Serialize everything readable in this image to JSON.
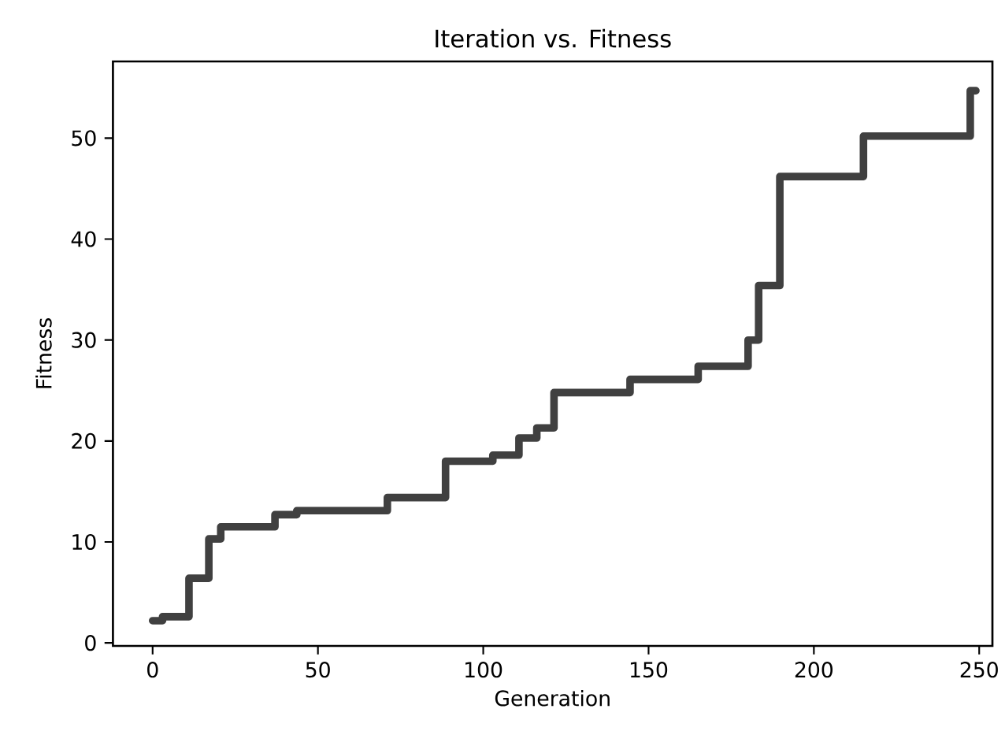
{
  "chart_data": {
    "type": "step",
    "title": "Iteration vs. Fitness",
    "xlabel": "Generation",
    "ylabel": "Fitness",
    "xlim": [
      -12,
      254
    ],
    "ylim": [
      -0.3,
      57.6
    ],
    "xticks": [
      0,
      50,
      100,
      150,
      200,
      250
    ],
    "yticks": [
      0,
      10,
      20,
      30,
      40,
      50
    ],
    "grid": false,
    "series": [
      {
        "color": "#404040",
        "x": [
          0,
          3,
          11,
          17,
          20.6,
          37,
          43.6,
          71,
          88.6,
          102.9,
          110.8,
          116.2,
          121.4,
          144.4,
          165,
          180.1,
          183.3,
          189.7,
          215,
          247.3,
          249
        ],
        "values": [
          2.2,
          2.6,
          6.4,
          10.3,
          11.5,
          12.7,
          13.1,
          14.4,
          18.0,
          18.6,
          20.3,
          21.3,
          24.8,
          26.1,
          27.4,
          30.0,
          35.4,
          46.2,
          50.2,
          54.7,
          54.7
        ]
      }
    ]
  }
}
